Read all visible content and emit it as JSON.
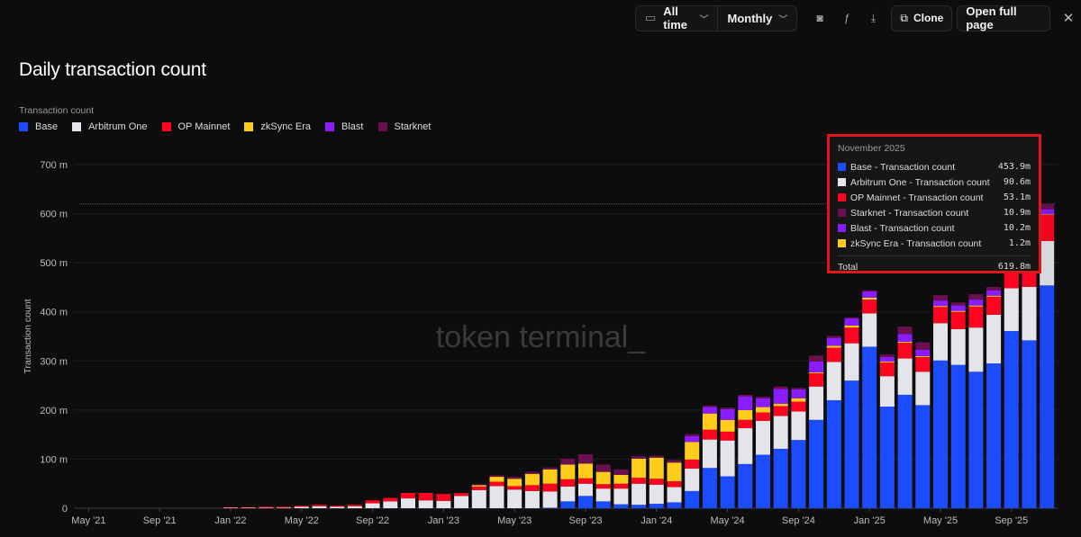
{
  "toolbar": {
    "range_label": "All time",
    "interval_label": "Monthly",
    "clone_label": "Clone",
    "open_full_page_label": "Open full page"
  },
  "title": "Daily transaction count",
  "legend_title": "Transaction count",
  "watermark": "token terminal_",
  "tooltip": {
    "title": "November 2025",
    "rows": [
      {
        "label": "Base - Transaction count",
        "value": "453.9m",
        "color": "#1c4cff"
      },
      {
        "label": "Arbitrum One - Transaction count",
        "value": "90.6m",
        "color": "#e4e5ea"
      },
      {
        "label": "OP Mainnet - Transaction count",
        "value": "53.1m",
        "color": "#ff0420"
      },
      {
        "label": "Starknet - Transaction count",
        "value": "10.9m",
        "color": "#6b0f4f"
      },
      {
        "label": "Blast - Transaction count",
        "value": "10.2m",
        "color": "#8a1cff"
      },
      {
        "label": "zkSync Era - Transaction count",
        "value": "1.2m",
        "color": "#ffcc1c"
      }
    ],
    "total_label": "Total",
    "total_value": "619.8m"
  },
  "chart_data": {
    "type": "bar",
    "stacked": true,
    "title": "Daily transaction count",
    "ylabel": "Transaction count",
    "xlabel": "",
    "ylim": [
      0,
      700
    ],
    "yticks": [
      0,
      100,
      200,
      300,
      400,
      500,
      600,
      700
    ],
    "ytick_labels": [
      "0",
      "100 m",
      "200 m",
      "300 m",
      "400 m",
      "500 m",
      "600 m",
      "700 m"
    ],
    "xtick_labels": [
      "May '21",
      "Sep '21",
      "Jan '22",
      "May '22",
      "Sep '22",
      "Jan '23",
      "May '23",
      "Sep '23",
      "Jan '24",
      "May '24",
      "Sep '24",
      "Jan '25",
      "May '25",
      "Sep '25"
    ],
    "xtick_month_offsets": [
      -8,
      -4,
      0,
      4,
      8,
      12,
      16,
      20,
      24,
      28,
      32,
      36,
      40,
      44
    ],
    "grid": true,
    "legend_position": "top-left",
    "highlight_line_value": 619.8,
    "categories": [
      "Jan '22",
      "Feb '22",
      "Mar '22",
      "Apr '22",
      "May '22",
      "Jun '22",
      "Jul '22",
      "Aug '22",
      "Sep '22",
      "Oct '22",
      "Nov '22",
      "Dec '22",
      "Jan '23",
      "Feb '23",
      "Mar '23",
      "Apr '23",
      "May '23",
      "Jun '23",
      "Jul '23",
      "Aug '23",
      "Sep '23",
      "Oct '23",
      "Nov '23",
      "Dec '23",
      "Jan '24",
      "Feb '24",
      "Mar '24",
      "Apr '24",
      "May '24",
      "Jun '24",
      "Jul '24",
      "Aug '24",
      "Sep '24",
      "Oct '24",
      "Nov '24",
      "Dec '24",
      "Jan '25",
      "Feb '25",
      "Mar '25",
      "Apr '25",
      "May '25",
      "Jun '25",
      "Jul '25",
      "Aug '25",
      "Sep '25",
      "Oct '25",
      "Nov '25"
    ],
    "series": [
      {
        "name": "Base",
        "color": "#1c4cff",
        "values": [
          0,
          0,
          0,
          0,
          0,
          0,
          0,
          0,
          0,
          0,
          0,
          0,
          0,
          0,
          0,
          0,
          0,
          0,
          1,
          14,
          25,
          14,
          8,
          7,
          9,
          12,
          35,
          82,
          65,
          90,
          109,
          121,
          139,
          180,
          220,
          260,
          329,
          207,
          231,
          210,
          301,
          292,
          278,
          295,
          361,
          342,
          453.9
        ]
      },
      {
        "name": "Arbitrum One",
        "color": "#e4e5ea",
        "values": [
          1,
          1,
          1,
          1,
          3,
          4,
          3,
          4,
          10,
          14,
          20,
          16,
          15,
          25,
          37,
          45,
          38,
          35,
          33,
          30,
          25,
          26,
          32,
          43,
          39,
          31,
          46,
          58,
          73,
          73,
          69,
          67,
          58,
          68,
          78,
          76,
          68,
          62,
          74,
          68,
          76,
          73,
          90,
          99,
          87,
          109,
          90.6
        ]
      },
      {
        "name": "OP Mainnet",
        "color": "#ff0420",
        "values": [
          1,
          1,
          2,
          2,
          2,
          3,
          2,
          3,
          6,
          7,
          11,
          15,
          14,
          6,
          7,
          9,
          7,
          12,
          16,
          15,
          11,
          9,
          10,
          12,
          12,
          12,
          18,
          20,
          18,
          17,
          17,
          20,
          20,
          27,
          29,
          32,
          28,
          28,
          32,
          30,
          33,
          35,
          43,
          37,
          45,
          45,
          53.1
        ]
      },
      {
        "name": "zkSync Era",
        "color": "#ffcc1c",
        "values": [
          0,
          0,
          0,
          0,
          0,
          0,
          0,
          0,
          0,
          0,
          0,
          0,
          0,
          0,
          3,
          10,
          15,
          23,
          29,
          30,
          30,
          25,
          18,
          39,
          43,
          38,
          36,
          33,
          24,
          20,
          11,
          5,
          7,
          2,
          4,
          4,
          4,
          2,
          2,
          2,
          2,
          2,
          2,
          2,
          2,
          2,
          1.2
        ]
      },
      {
        "name": "Blast",
        "color": "#8a1cff",
        "values": [
          0,
          0,
          0,
          0,
          0,
          0,
          0,
          0,
          0,
          0,
          0,
          0,
          0,
          0,
          0,
          0,
          0,
          0,
          0,
          0,
          0,
          0,
          0,
          0,
          0,
          0,
          12,
          13,
          22,
          28,
          18,
          30,
          18,
          22,
          16,
          15,
          13,
          9,
          16,
          13,
          11,
          11,
          12,
          11,
          12,
          14,
          10.2
        ]
      },
      {
        "name": "Starknet",
        "color": "#6b0f4f",
        "values": [
          0,
          0,
          0,
          0,
          0,
          0,
          0,
          0,
          0,
          0,
          0,
          0,
          0,
          0,
          2,
          3,
          4,
          4,
          4,
          12,
          19,
          15,
          11,
          5,
          4,
          5,
          4,
          3,
          3,
          3,
          3,
          5,
          3,
          12,
          4,
          2,
          2,
          5,
          15,
          15,
          11,
          6,
          11,
          7,
          10,
          12,
          10.9
        ]
      }
    ]
  }
}
